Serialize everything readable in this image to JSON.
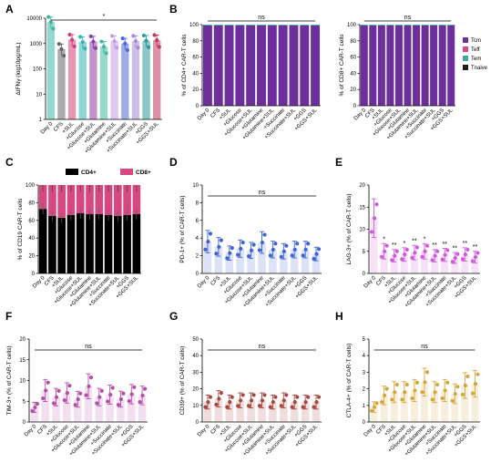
{
  "figure": {
    "categories": [
      "Day 0",
      "CFS",
      "+SUL",
      "+Glucose",
      "+Glucose+SUL",
      "+Glutamine",
      "+Glutamine+SUL",
      "+Succinate",
      "+Succinate+SUL",
      "+GGS",
      "+GGS+SUL"
    ],
    "colors": {
      "A": [
        "#3fb8a0",
        "#666666",
        "#d33d79",
        "#2fb7b3",
        "#8b3ea3",
        "#3fb8a0",
        "#c39be6",
        "#4c6ad8",
        "#a78bd6",
        "#2d9a9a",
        "#c0395e"
      ],
      "purple_dark": "#5b2384",
      "tcm": "#6d2f9c",
      "teff": "#d54a8a",
      "tem": "#3eaaa7",
      "tnaive": "#1c1c1c",
      "cd4": "#000000",
      "cd8": "#d6487f",
      "D": "#3f63d4",
      "E": "#cf5ad8",
      "F": "#b64ea9",
      "G": "#a8473f",
      "H": "#d4a63a"
    }
  },
  "chart_data": [
    {
      "panel": "A",
      "type": "bar",
      "ylabel": "ΔIFNγ (log10pg/mL)",
      "yticks": [
        "10000",
        "1000",
        "100",
        "10",
        "1"
      ],
      "significance": "*",
      "values": [
        7000,
        600,
        1400,
        1150,
        1200,
        750,
        1250,
        1000,
        1250,
        1300,
        1350
      ]
    },
    {
      "panel": "B",
      "type": "bar",
      "ylabel": "% of CD4+ CAR-T cells",
      "yticks": [
        "100",
        "80",
        "60",
        "40",
        "20",
        "0"
      ],
      "significance": "ns",
      "values": [
        99,
        99,
        99,
        99,
        99,
        99,
        99,
        99,
        99,
        99,
        99
      ]
    },
    {
      "panel": "B2",
      "type": "bar",
      "ylabel": "% of CD8+ CAR-T cells",
      "yticks": [
        "100",
        "80",
        "60",
        "40",
        "20",
        "0"
      ],
      "significance": "ns",
      "legend": [
        "Tcm",
        "Teff",
        "Tem",
        "Tnaive"
      ],
      "values": [
        99,
        99,
        99,
        99,
        99,
        99,
        99,
        99,
        99,
        99,
        99
      ]
    },
    {
      "panel": "C",
      "type": "bar",
      "ylabel": "% of CD19 CAR-T cells",
      "yticks": [
        "100",
        "80",
        "60",
        "40",
        "20",
        "0"
      ],
      "legend": [
        "CD4+",
        "CD8+"
      ],
      "series": [
        {
          "name": "CD4+",
          "values": [
            73,
            65,
            63,
            66,
            68,
            67,
            67,
            66,
            65,
            66,
            67
          ]
        },
        {
          "name": "CD8+",
          "values": [
            27,
            35,
            37,
            34,
            32,
            33,
            33,
            34,
            35,
            34,
            33
          ]
        }
      ]
    },
    {
      "panel": "D",
      "type": "bar",
      "ylabel": "PD-1+ (% of CAR-T cells)",
      "yticks": [
        "10",
        "8",
        "6",
        "4",
        "2",
        "0"
      ],
      "significance": "ns",
      "values": [
        3.6,
        3.0,
        2.3,
        2.8,
        2.6,
        3.5,
        2.7,
        2.5,
        2.7,
        2.7,
        2.2
      ]
    },
    {
      "panel": "E",
      "type": "bar",
      "ylabel": "LAG-3+ (% of CAR-T cells)",
      "yticks": [
        "20",
        "15",
        "10",
        "5",
        "0"
      ],
      "stars": [
        "",
        "*",
        "**",
        "*",
        "**",
        "*",
        "**",
        "**",
        "**",
        "**",
        "**"
      ],
      "values": [
        12.5,
        5.0,
        4.0,
        4.3,
        4.7,
        5.0,
        4.0,
        4.2,
        3.5,
        4.3,
        3.7
      ]
    },
    {
      "panel": "F",
      "type": "bar",
      "ylabel": "TIM-3+ (% of CAR-T cells)",
      "yticks": [
        "20",
        "15",
        "10",
        "5",
        "0"
      ],
      "significance": "ns",
      "values": [
        3.5,
        7.6,
        6.0,
        7.0,
        5.5,
        8.6,
        6.0,
        6.6,
        5.5,
        6.7,
        6.4
      ]
    },
    {
      "panel": "G",
      "type": "bar",
      "ylabel": "CD39+ (% of CAR-T cells)",
      "yticks": [
        "50",
        "40",
        "30",
        "20",
        "10",
        "0"
      ],
      "significance": "ns",
      "values": [
        12,
        14,
        12,
        13,
        13,
        13,
        12,
        13,
        12,
        12,
        12
      ]
    },
    {
      "panel": "H",
      "type": "bar",
      "ylabel": "CTLA-4+ (% of CAR-T cells)",
      "yticks": [
        "5",
        "4",
        "3",
        "2",
        "1",
        "0"
      ],
      "significance": "ns",
      "values": [
        0.9,
        1.6,
        1.8,
        1.8,
        1.9,
        2.4,
        1.8,
        1.9,
        1.7,
        2.2,
        2.3
      ]
    }
  ]
}
